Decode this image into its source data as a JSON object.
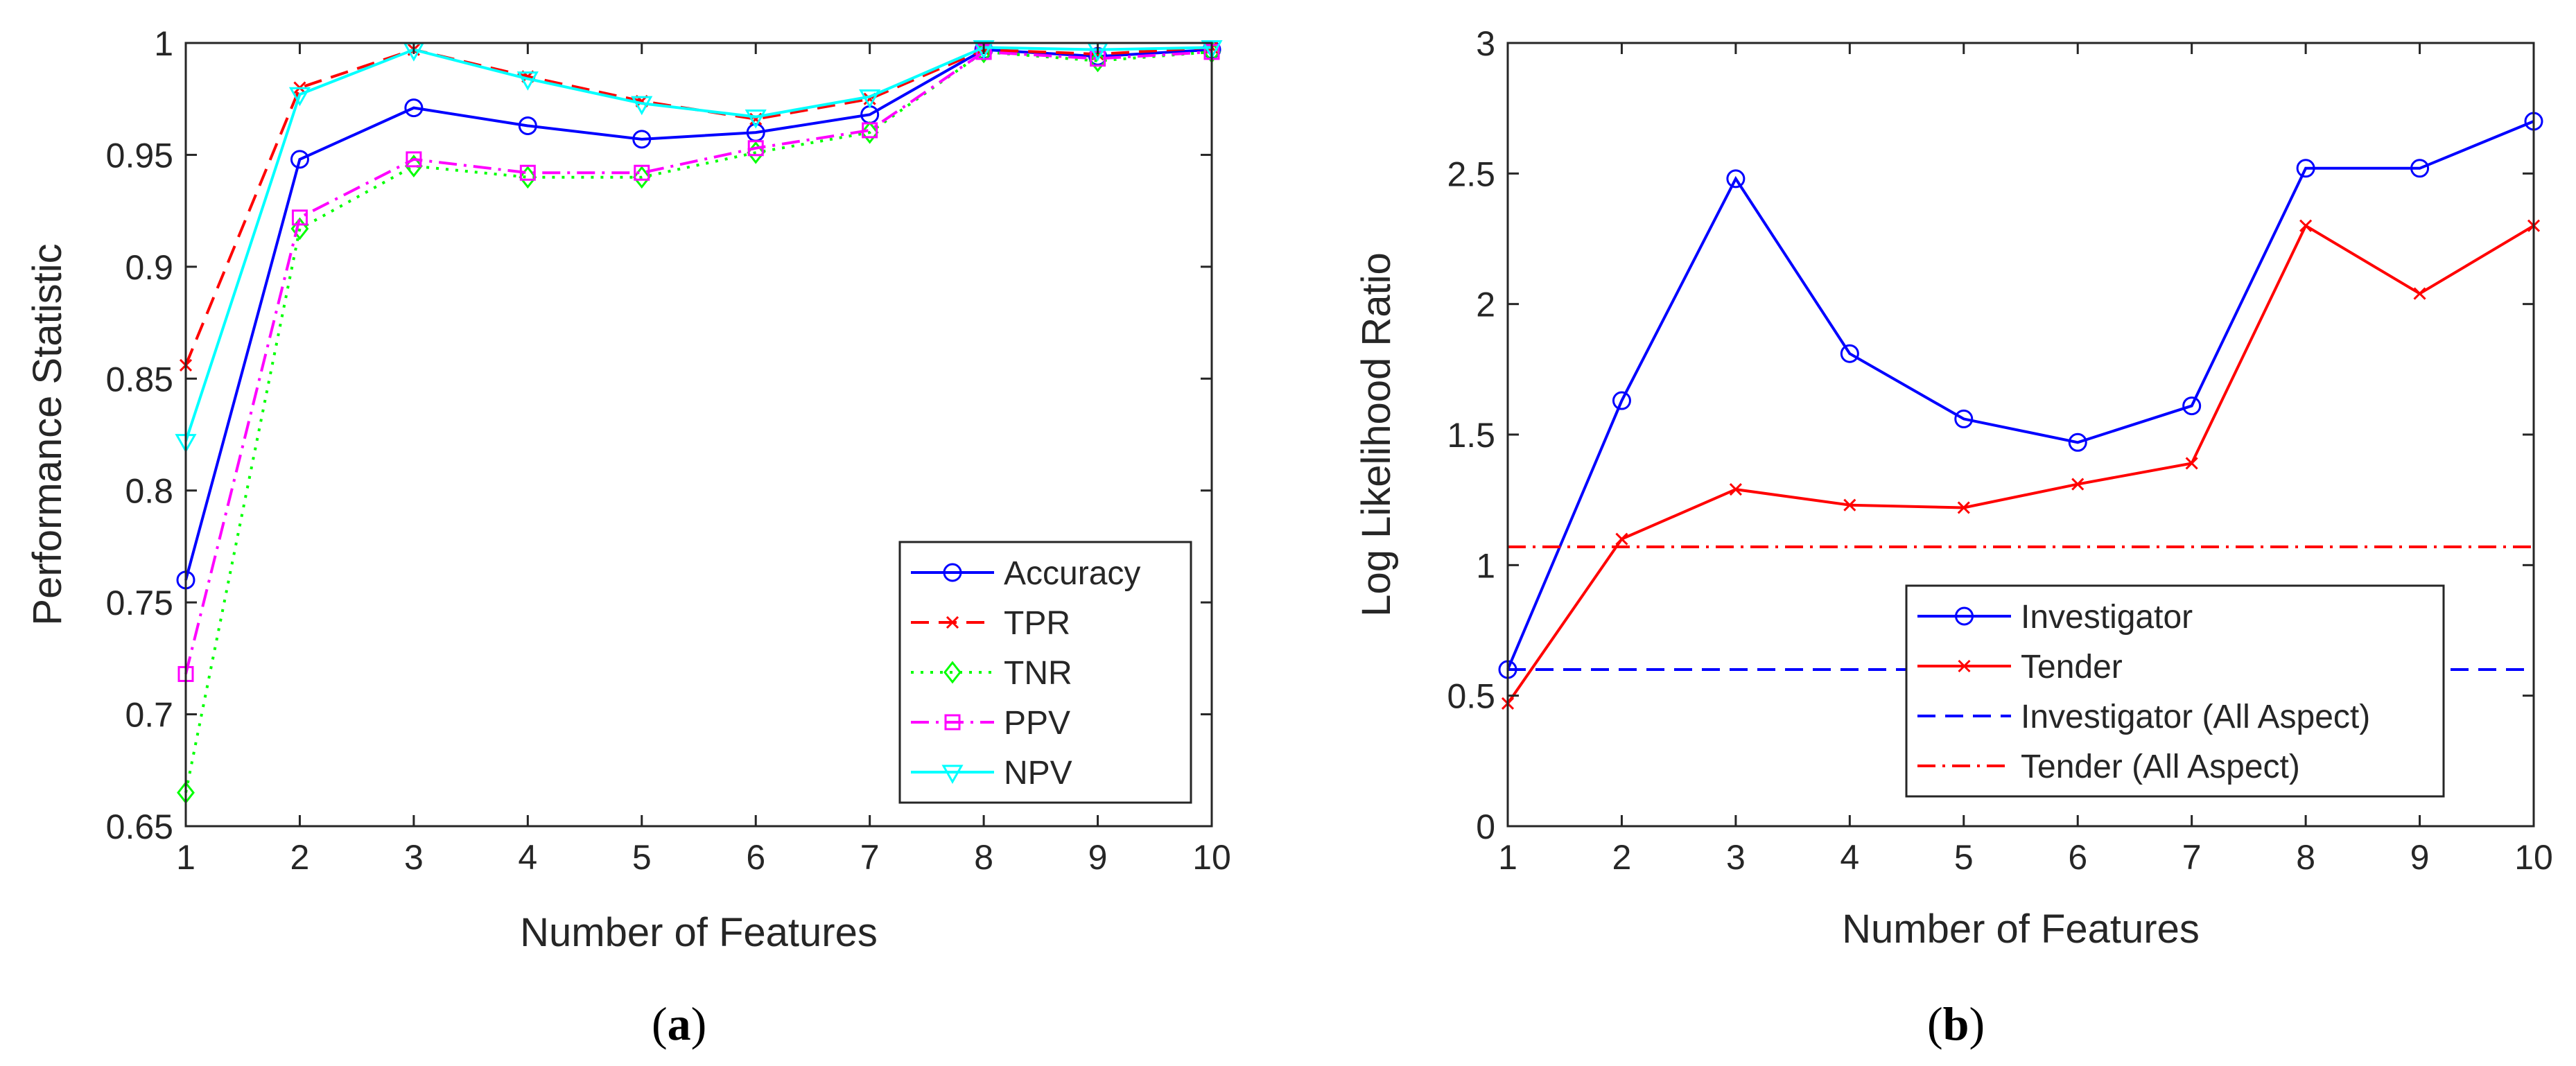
{
  "chart_data": [
    {
      "type": "line",
      "caption": "a",
      "xlabel": "Number of Features",
      "ylabel": "Performance Statistic",
      "xlim": [
        1,
        10
      ],
      "ylim": [
        0.65,
        1
      ],
      "xticks": [
        "1",
        "2",
        "3",
        "4",
        "5",
        "6",
        "7",
        "8",
        "9",
        "10"
      ],
      "yticks": [
        "0.65",
        "0.7",
        "0.75",
        "0.8",
        "0.85",
        "0.9",
        "0.95",
        "1"
      ],
      "grid": false,
      "legend_position": "bottom-right",
      "x": [
        1,
        2,
        3,
        4,
        5,
        6,
        7,
        8,
        9,
        10
      ],
      "series": [
        {
          "name": "Accuracy",
          "color": "#0000ff",
          "dash": "solid",
          "marker": "circle",
          "values": [
            0.76,
            0.948,
            0.971,
            0.963,
            0.957,
            0.96,
            0.968,
            0.997,
            0.994,
            0.997
          ]
        },
        {
          "name": "TPR",
          "color": "#ff0000",
          "dash": "dashed",
          "marker": "x",
          "values": [
            0.856,
            0.98,
            0.997,
            0.985,
            0.974,
            0.966,
            0.975,
            0.997,
            0.995,
            0.998
          ]
        },
        {
          "name": "TNR",
          "color": "#00ff00",
          "dash": "dotted",
          "marker": "diamond",
          "values": [
            0.665,
            0.917,
            0.945,
            0.94,
            0.94,
            0.951,
            0.96,
            0.996,
            0.992,
            0.996
          ]
        },
        {
          "name": "PPV",
          "color": "#ff00ff",
          "dash": "dashdot",
          "marker": "square",
          "values": [
            0.718,
            0.922,
            0.948,
            0.942,
            0.942,
            0.953,
            0.961,
            0.996,
            0.993,
            0.996
          ]
        },
        {
          "name": "NPV",
          "color": "#00ffff",
          "dash": "solid",
          "marker": "triangle-down",
          "values": [
            0.822,
            0.977,
            0.997,
            0.984,
            0.973,
            0.967,
            0.976,
            0.998,
            0.997,
            0.998
          ]
        }
      ]
    },
    {
      "type": "line",
      "caption": "b",
      "xlabel": "Number of Features",
      "ylabel": "Log Likelihood Ratio",
      "xlim": [
        1,
        10
      ],
      "ylim": [
        0,
        3
      ],
      "xticks": [
        "1",
        "2",
        "3",
        "4",
        "5",
        "6",
        "7",
        "8",
        "9",
        "10"
      ],
      "yticks": [
        "0",
        "0.5",
        "1",
        "1.5",
        "2",
        "2.5",
        "3"
      ],
      "grid": false,
      "legend_position": "center",
      "x": [
        1,
        2,
        3,
        4,
        5,
        6,
        7,
        8,
        9,
        10
      ],
      "series": [
        {
          "name": "Investigator",
          "color": "#0000ff",
          "dash": "solid",
          "marker": "circle",
          "values": [
            0.6,
            1.63,
            2.48,
            1.81,
            1.56,
            1.47,
            1.61,
            2.52,
            2.52,
            2.7
          ]
        },
        {
          "name": "Tender",
          "color": "#ff0000",
          "dash": "solid",
          "marker": "x",
          "values": [
            0.47,
            1.1,
            1.29,
            1.23,
            1.22,
            1.31,
            1.39,
            2.3,
            2.04,
            2.3
          ]
        },
        {
          "name": "Investigator (All Aspect)",
          "color": "#0000ff",
          "dash": "dashed",
          "marker": "none",
          "values": [
            0.6,
            0.6,
            0.6,
            0.6,
            0.6,
            0.6,
            0.6,
            0.6,
            0.6,
            0.6
          ]
        },
        {
          "name": "Tender (All Aspect)",
          "color": "#ff0000",
          "dash": "dashdot",
          "marker": "none",
          "values": [
            1.07,
            1.07,
            1.07,
            1.07,
            1.07,
            1.07,
            1.07,
            1.07,
            1.07,
            1.07
          ]
        }
      ]
    }
  ]
}
